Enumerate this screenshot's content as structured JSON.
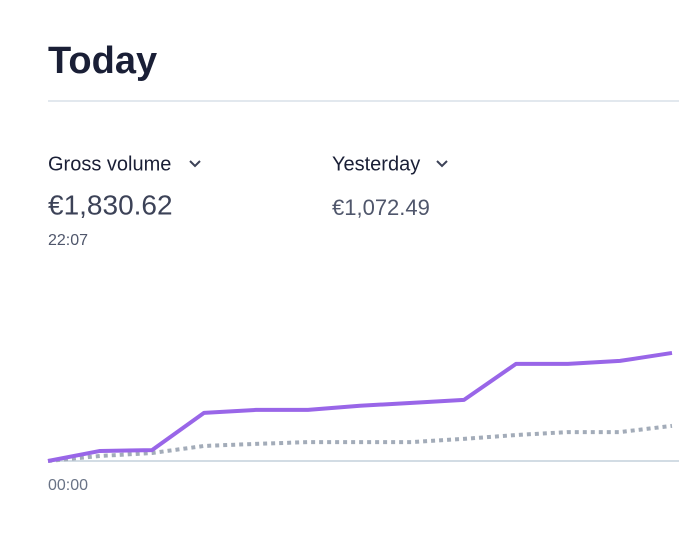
{
  "header": {
    "title": "Today"
  },
  "metrics": [
    {
      "label": "Gross volume",
      "value": "€1,830.62",
      "time": "22:07"
    },
    {
      "label": "Yesterday",
      "value": "€1,072.49"
    }
  ],
  "chart_data": {
    "type": "line",
    "categories": [
      "00:00",
      null,
      null,
      null,
      null,
      null,
      null,
      null,
      null,
      null,
      null,
      null,
      null
    ],
    "series": [
      {
        "name": "Gross volume",
        "color": "#9966e8",
        "style": "solid",
        "values": [
          0,
          170,
          185,
          815,
          865,
          865,
          935,
          985,
          1035,
          1645,
          1645,
          1695,
          1830
        ]
      },
      {
        "name": "Yesterday",
        "color": "#a3acb9",
        "style": "dotted",
        "values": [
          0,
          85,
          135,
          255,
          290,
          320,
          320,
          320,
          375,
          440,
          490,
          490,
          595
        ]
      }
    ],
    "ylim": [
      0,
      2100
    ]
  }
}
